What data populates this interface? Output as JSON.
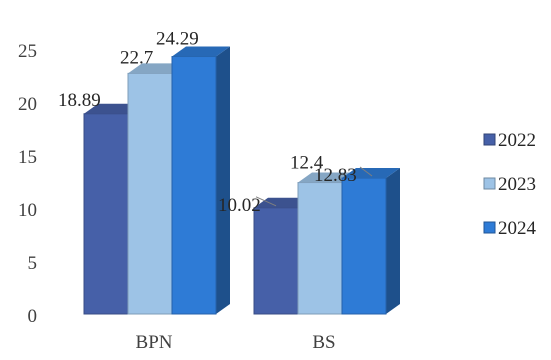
{
  "chart_data": {
    "type": "bar",
    "categories": [
      "BPN",
      "BS"
    ],
    "series": [
      {
        "name": "2022",
        "values": [
          18.89,
          10.02
        ],
        "color": "#4660A8"
      },
      {
        "name": "2023",
        "values": [
          22.7,
          12.4
        ],
        "color": "#9DC3E6"
      },
      {
        "name": "2024",
        "values": [
          24.29,
          12.83
        ],
        "color": "#2E7BD6"
      }
    ],
    "title": "",
    "xlabel": "",
    "ylabel": "",
    "ylim": [
      0,
      25
    ],
    "yticks": [
      0,
      5,
      10,
      15,
      20,
      25
    ],
    "grid": false,
    "legend": "right",
    "style": "3d-clustered"
  }
}
